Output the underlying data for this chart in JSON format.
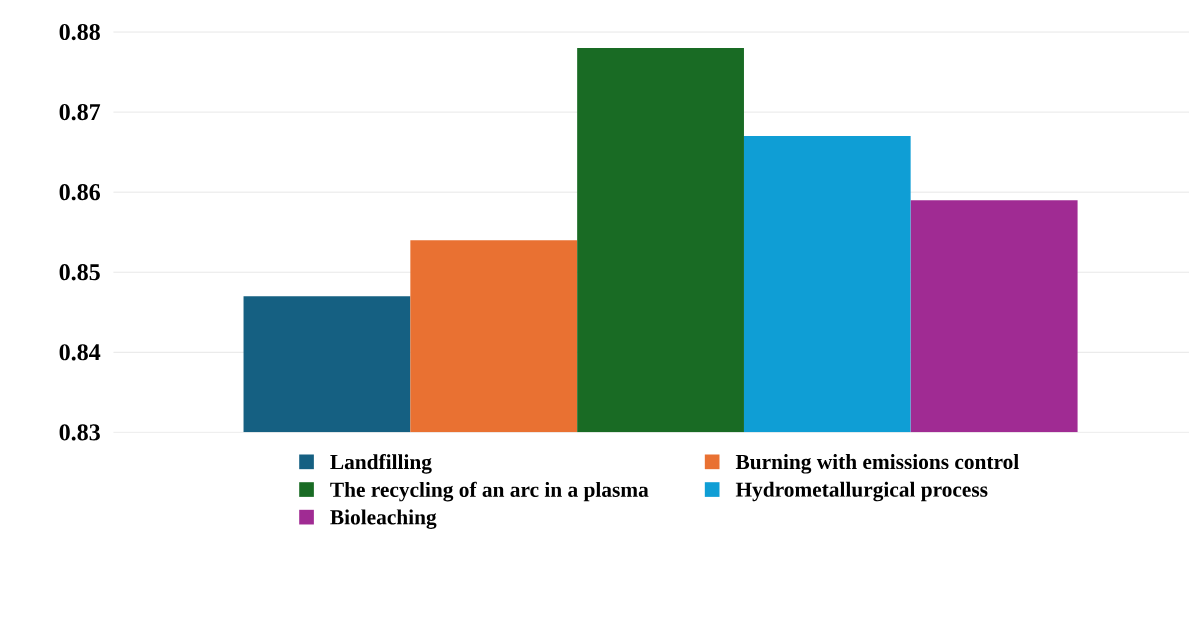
{
  "chart_data": {
    "type": "bar",
    "categories": [
      null
    ],
    "series": [
      {
        "name": "Landfilling",
        "color": "#156082",
        "values": [
          0.847
        ]
      },
      {
        "name": "Burning with emissions control",
        "color": "#e97132",
        "values": [
          0.854
        ]
      },
      {
        "name": "The recycling of an arc in a plasma",
        "color": "#196b24",
        "values": [
          0.878
        ]
      },
      {
        "name": "Hydrometallurgical process",
        "color": "#0f9ed5",
        "values": [
          0.867
        ]
      },
      {
        "name": "Bioleaching",
        "color": "#a02b93",
        "values": [
          0.859
        ]
      }
    ],
    "ylim": [
      0.83,
      0.88
    ],
    "yticks": [
      0.83,
      0.84,
      0.85,
      0.86,
      0.87,
      0.88
    ],
    "grid": "y",
    "legend": "bottom"
  }
}
